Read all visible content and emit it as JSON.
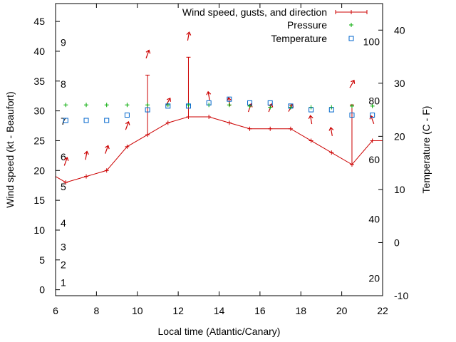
{
  "chart_data": {
    "type": "line",
    "legend_position": "top-right",
    "grid": false,
    "xlabel": "Local time (Atlantic/Canary)",
    "ylabel": "Wind speed (kt - Beaufort)",
    "y2label": "Temperature (C - F)",
    "xlim": [
      6,
      22
    ],
    "ylim": [
      -1,
      48
    ],
    "y2lim": [
      -10,
      45
    ],
    "x_ticks": [
      6,
      8,
      10,
      12,
      14,
      16,
      18,
      20,
      22
    ],
    "y_ticks": [
      0,
      5,
      10,
      15,
      20,
      25,
      30,
      35,
      40,
      45
    ],
    "y2_ticks": [
      -10,
      0,
      10,
      20,
      30,
      40
    ],
    "beaufort_labels": [
      {
        "label": "1",
        "kt": 1.2
      },
      {
        "label": "2",
        "kt": 4.2
      },
      {
        "label": "3",
        "kt": 7.2
      },
      {
        "label": "4",
        "kt": 11.2
      },
      {
        "label": "5",
        "kt": 17.3
      },
      {
        "label": "6",
        "kt": 22.3
      },
      {
        "label": "7",
        "kt": 28.3
      },
      {
        "label": "8",
        "kt": 34.5
      },
      {
        "label": "9",
        "kt": 41.5
      }
    ],
    "fahrenheit_labels": [
      {
        "label": "20",
        "celsius": -6.7
      },
      {
        "label": "40",
        "celsius": 4.4
      },
      {
        "label": "60",
        "celsius": 15.6
      },
      {
        "label": "80",
        "celsius": 26.7
      },
      {
        "label": "100",
        "celsius": 37.8
      }
    ],
    "series": [
      {
        "name": "Wind speed, gusts, and direction",
        "color": "#cc0000",
        "x": [
          6,
          6.5,
          7.5,
          8.5,
          9.5,
          10.5,
          11.5,
          12.5,
          13.5,
          14.5,
          15.5,
          16.5,
          17.5,
          18.5,
          19.5,
          20.5,
          21.5,
          22
        ],
        "values": [
          19,
          18,
          19,
          20,
          24,
          26,
          28,
          29,
          29,
          28,
          27,
          27,
          27,
          25,
          23,
          21,
          25,
          25
        ],
        "gusts": [
          {
            "x": 10.5,
            "value": 36
          },
          {
            "x": 12.5,
            "value": 39
          },
          {
            "x": 20.5,
            "value": 31
          }
        ],
        "direction_arrows": [
          {
            "x": 6.5,
            "y": 21.5,
            "angle": 200
          },
          {
            "x": 7.5,
            "y": 22.5,
            "angle": 190
          },
          {
            "x": 8.5,
            "y": 23.5,
            "angle": 200
          },
          {
            "x": 9.5,
            "y": 27.5,
            "angle": 200
          },
          {
            "x": 10.5,
            "y": 39.5,
            "angle": 200
          },
          {
            "x": 11.5,
            "y": 31.5,
            "angle": 210
          },
          {
            "x": 12.5,
            "y": 42.5,
            "angle": 190
          },
          {
            "x": 13.5,
            "y": 32.5,
            "angle": 170
          },
          {
            "x": 14.5,
            "y": 31.5,
            "angle": 170
          },
          {
            "x": 15.5,
            "y": 30.5,
            "angle": 200
          },
          {
            "x": 16.5,
            "y": 30.5,
            "angle": 200
          },
          {
            "x": 17.5,
            "y": 30.5,
            "angle": 210
          },
          {
            "x": 18.5,
            "y": 28.5,
            "angle": 170
          },
          {
            "x": 19.5,
            "y": 26.5,
            "angle": 170
          },
          {
            "x": 20.5,
            "y": 34.5,
            "angle": 210
          },
          {
            "x": 21.5,
            "y": 28.5,
            "angle": 160
          }
        ]
      },
      {
        "name": "Pressure",
        "color": "#00aa00",
        "x": [
          6.5,
          7.5,
          8.5,
          9.5,
          10.5,
          11.5,
          12.5,
          13.5,
          14.5,
          15.5,
          16.5,
          17.5,
          18.5,
          19.5,
          20.5,
          21.5
        ],
        "values": [
          31,
          31,
          31,
          31,
          31,
          31,
          31,
          31,
          31,
          30.8,
          30.6,
          30.6,
          30.6,
          30.6,
          30.8,
          30.8
        ]
      },
      {
        "name": "Temperature",
        "color": "#0066cc",
        "x": [
          6.5,
          7.5,
          8.5,
          9.5,
          10.5,
          11.5,
          12.5,
          13.5,
          14.5,
          15.5,
          16.5,
          17.5,
          18.5,
          19.5,
          20.5,
          21.5
        ],
        "values": [
          23,
          23,
          23,
          24,
          25,
          25.7,
          25.7,
          26.3,
          27,
          26.3,
          26.3,
          25.7,
          25,
          25,
          24,
          24
        ]
      }
    ]
  }
}
